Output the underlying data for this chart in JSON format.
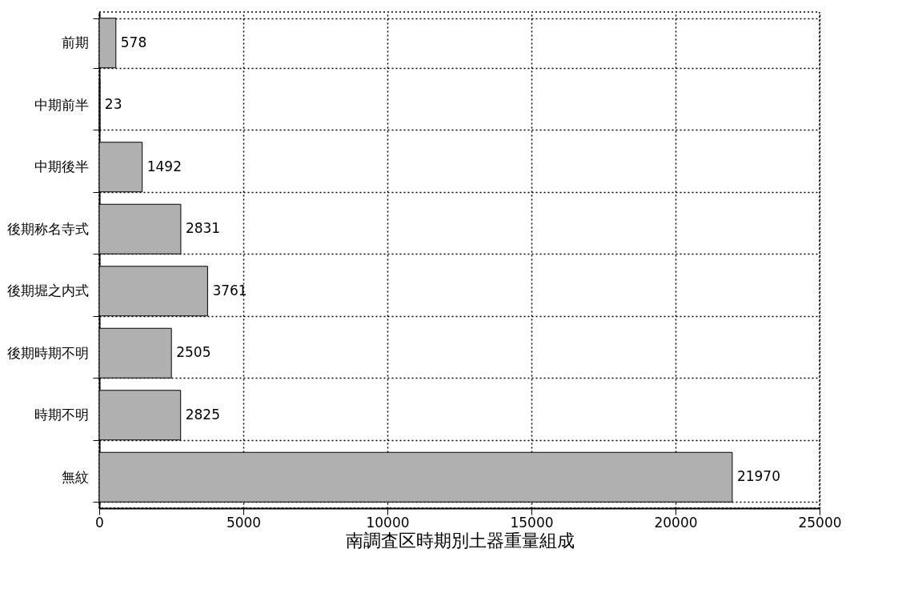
{
  "chart_data": {
    "type": "bar",
    "orientation": "horizontal",
    "xlabel": "南調査区時期別土器重量組成",
    "categories": [
      "前期",
      "中期前半",
      "中期後半",
      "後期称名寺式",
      "後期堀之内式",
      "後期時期不明",
      "時期不明",
      "無紋"
    ],
    "values": [
      578,
      23,
      1492,
      2831,
      3761,
      2505,
      2825,
      21970
    ],
    "color": "#b0b0b0",
    "xlim": [
      0,
      25000
    ],
    "xticks": [
      0,
      5000,
      10000,
      15000,
      20000,
      25000
    ],
    "grid": true,
    "data_labels": true
  }
}
